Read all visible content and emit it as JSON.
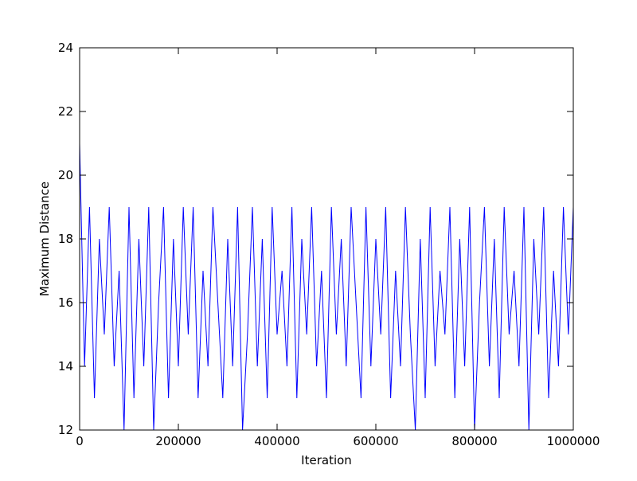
{
  "chart_data": {
    "type": "line",
    "xlabel": "Iteration",
    "ylabel": "Maximum Distance",
    "x": [
      0,
      10000,
      20000,
      30000,
      40000,
      50000,
      60000,
      70000,
      80000,
      90000,
      100000,
      110000,
      120000,
      130000,
      140000,
      150000,
      160000,
      170000,
      180000,
      190000,
      200000,
      210000,
      220000,
      230000,
      240000,
      250000,
      260000,
      270000,
      280000,
      290000,
      300000,
      310000,
      320000,
      330000,
      340000,
      350000,
      360000,
      370000,
      380000,
      390000,
      400000,
      410000,
      420000,
      430000,
      440000,
      450000,
      460000,
      470000,
      480000,
      490000,
      500000,
      510000,
      520000,
      530000,
      540000,
      550000,
      560000,
      570000,
      580000,
      590000,
      600000,
      610000,
      620000,
      630000,
      640000,
      650000,
      660000,
      670000,
      680000,
      690000,
      700000,
      710000,
      720000,
      730000,
      740000,
      750000,
      760000,
      770000,
      780000,
      790000,
      800000,
      810000,
      820000,
      830000,
      840000,
      850000,
      860000,
      870000,
      880000,
      890000,
      900000,
      910000,
      920000,
      930000,
      940000,
      950000,
      960000,
      970000,
      980000,
      990000,
      1000000
    ],
    "values": [
      21,
      14,
      19,
      13,
      18,
      15,
      19,
      14,
      17,
      12,
      19,
      13,
      18,
      14,
      19,
      12,
      16,
      19,
      13,
      18,
      14,
      19,
      15,
      19,
      13,
      17,
      14,
      19,
      16,
      13,
      18,
      14,
      19,
      12,
      15,
      19,
      14,
      18,
      13,
      19,
      15,
      17,
      14,
      19,
      13,
      18,
      15,
      19,
      14,
      17,
      13,
      19,
      15,
      18,
      14,
      19,
      16,
      13,
      19,
      14,
      18,
      15,
      19,
      13,
      17,
      14,
      19,
      15,
      12,
      18,
      13,
      19,
      14,
      17,
      15,
      19,
      13,
      18,
      14,
      19,
      12,
      16,
      19,
      14,
      18,
      13,
      19,
      15,
      17,
      14,
      19,
      12,
      18,
      15,
      19,
      13,
      17,
      14,
      19,
      15,
      19
    ],
    "color": "#0000ff",
    "xlim": [
      0,
      1000000
    ],
    "xticks": [
      0,
      200000,
      400000,
      600000,
      800000,
      1000000
    ],
    "ylim": [
      12,
      24
    ],
    "yticks": [
      12,
      14,
      16,
      18,
      20,
      22,
      24
    ],
    "grid": false
  }
}
